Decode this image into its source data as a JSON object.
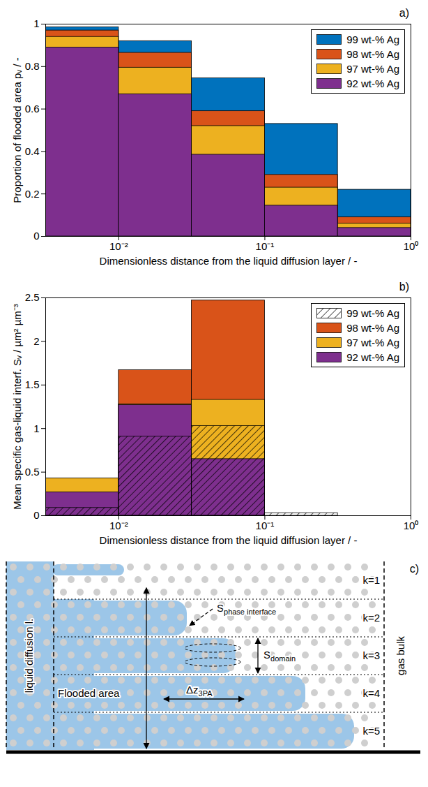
{
  "chart_data": [
    {
      "type": "histogram",
      "title": "a)",
      "x_label": "Dimensionless distance from the liquid diffusion layer / -",
      "y_label": "Proportion of flooded area pᵥ / -",
      "bins": [
        0.00316,
        0.01,
        0.0316,
        0.1,
        0.316,
        1
      ],
      "series": [
        {
          "name": "99 wt-% Ag",
          "color": "#0072bd",
          "values": [
            0.985,
            0.92,
            0.745,
            0.53,
            0.22
          ]
        },
        {
          "name": "98 wt-% Ag",
          "color": "#d95319",
          "values": [
            0.97,
            0.865,
            0.59,
            0.29,
            0.09
          ]
        },
        {
          "name": "97 wt-% Ag",
          "color": "#edb120",
          "values": [
            0.94,
            0.795,
            0.52,
            0.23,
            0.06
          ]
        },
        {
          "name": "92 wt-% Ag",
          "color": "#7e2f8e",
          "values": [
            0.89,
            0.67,
            0.385,
            0.145,
            0.04
          ]
        }
      ],
      "xlim": [
        0.00316,
        1
      ],
      "xticks": [
        {
          "value": 0.01,
          "label": "10⁻²"
        },
        {
          "value": 0.1,
          "label": "10⁻¹"
        },
        {
          "value": 1,
          "label": "10⁰"
        }
      ],
      "ylim": [
        0,
        1
      ],
      "yticks": [
        0,
        0.2,
        0.4,
        0.6,
        0.8,
        1
      ],
      "log": "x",
      "legend": "top-right",
      "stacked": false
    },
    {
      "type": "histogram",
      "title": "b)",
      "x_label": "Dimensionless distance from the liquid diffusion layer / -",
      "y_label": "Mean specific gas-liquid interf. Sᵥ / µm² µm⁻³",
      "bins": [
        0.00316,
        0.01,
        0.0316,
        0.1,
        0.316,
        1
      ],
      "series": [
        {
          "name": "99 wt-% Ag",
          "color": "#000000",
          "line_style": "hatched",
          "values": [
            0.09,
            0.91,
            1.03,
            0.03,
            0
          ]
        },
        {
          "name": "98 wt-% Ag",
          "color": "#d95319",
          "values": [
            0,
            1.67,
            2.47,
            0,
            0
          ]
        },
        {
          "name": "97 wt-% Ag",
          "color": "#edb120",
          "values": [
            0.43,
            1.28,
            1.33,
            0,
            0
          ]
        },
        {
          "name": "92 wt-% Ag",
          "color": "#7e2f8e",
          "values": [
            0.27,
            1.27,
            0.65,
            0,
            0
          ]
        }
      ],
      "xlim": [
        0.00316,
        1
      ],
      "xticks": [
        {
          "value": 0.01,
          "label": "10⁻²"
        },
        {
          "value": 0.1,
          "label": "10⁻¹"
        },
        {
          "value": 1,
          "label": "10⁰"
        }
      ],
      "ylim": [
        0,
        2.5
      ],
      "yticks": [
        0,
        0.5,
        1,
        1.5,
        2,
        2.5
      ],
      "log": "x",
      "legend": "top-right",
      "stacked": false
    }
  ],
  "diagram": {
    "title": "c)",
    "left_label": "liquid diffusion l.",
    "right_label": "gas bulk",
    "layers": [
      "k=1",
      "k=2",
      "k=3",
      "k=4",
      "k=5"
    ],
    "flooded_label": "Flooded area",
    "phase_interface": {
      "base": "S",
      "sub": "phase interface"
    },
    "domain": {
      "base": "S",
      "sub": "domain"
    },
    "three_phase": {
      "base": "Δz",
      "sub": "3PA"
    }
  }
}
